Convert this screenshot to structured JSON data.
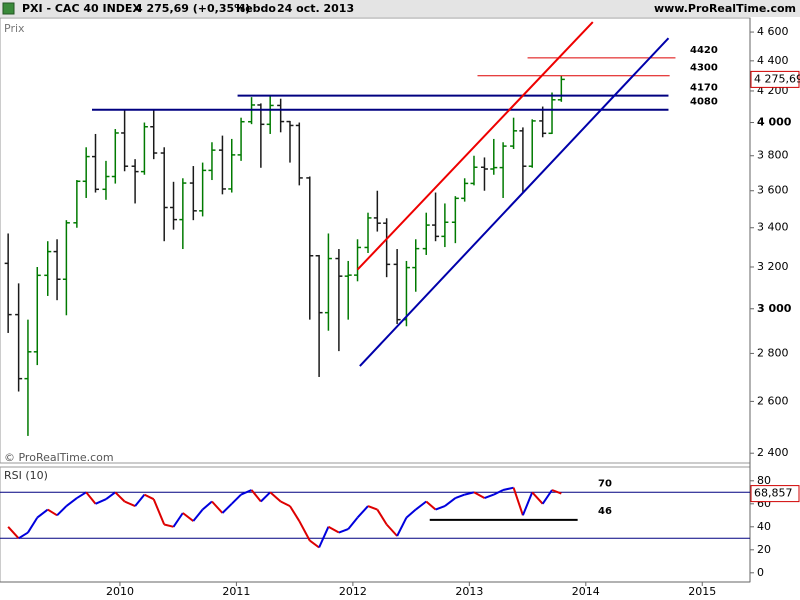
{
  "header": {
    "symbol": "PXI - CAC 40 INDEX",
    "quote": "4 275,69 (+0,35%)",
    "period": "Hebdo",
    "date": "24 oct. 2013",
    "site": "www.ProRealTime.com"
  },
  "chart_data": [
    {
      "type": "ohlc",
      "label": "Prix",
      "watermark": "© ProRealTime.com",
      "log_scale": true,
      "up_color": "#007a00",
      "down_color": "#1a1a1a",
      "x": [
        2009.04,
        2009.13,
        2009.21,
        2009.29,
        2009.38,
        2009.46,
        2009.54,
        2009.63,
        2009.71,
        2009.79,
        2009.88,
        2009.96,
        2010.04,
        2010.13,
        2010.21,
        2010.29,
        2010.38,
        2010.46,
        2010.54,
        2010.63,
        2010.71,
        2010.79,
        2010.88,
        2010.96,
        2011.04,
        2011.13,
        2011.21,
        2011.29,
        2011.38,
        2011.46,
        2011.54,
        2011.63,
        2011.71,
        2011.79,
        2011.88,
        2011.96,
        2012.04,
        2012.13,
        2012.21,
        2012.29,
        2012.38,
        2012.46,
        2012.54,
        2012.63,
        2012.71,
        2012.79,
        2012.88,
        2012.96,
        2013.04,
        2013.13,
        2013.21,
        2013.29,
        2013.38,
        2013.46,
        2013.54,
        2013.63,
        2013.71,
        2013.79
      ],
      "open": [
        3218,
        2973,
        2693,
        2807,
        3159,
        3277,
        3140,
        3426,
        3653,
        3795,
        3608,
        3680,
        3936,
        3739,
        3708,
        3974,
        3816,
        3508,
        3443,
        3643,
        3490,
        3715,
        3833,
        3610,
        3805,
        4005,
        4110,
        3989,
        4107,
        4006,
        3982,
        3672,
        3256,
        2982,
        3242,
        3155,
        3160,
        3298,
        3452,
        3424,
        3213,
        2950,
        3197,
        3292,
        3414,
        3355,
        3429,
        3558,
        3641,
        3733,
        3723,
        3731,
        3857,
        3949,
        3739,
        4010,
        3934,
        4143
      ],
      "high": [
        3370,
        3120,
        2950,
        3200,
        3330,
        3340,
        3440,
        3660,
        3850,
        3930,
        3770,
        3960,
        4080,
        3780,
        4000,
        4080,
        3850,
        3650,
        3670,
        3740,
        3760,
        3880,
        3920,
        3900,
        4030,
        4160,
        4120,
        4170,
        4150,
        4010,
        4000,
        3680,
        3260,
        3370,
        3290,
        3230,
        3340,
        3480,
        3600,
        3450,
        3290,
        3230,
        3340,
        3480,
        3590,
        3530,
        3570,
        3670,
        3800,
        3790,
        3900,
        3880,
        4030,
        3970,
        4020,
        4100,
        4190,
        4300
      ],
      "low": [
        2890,
        2640,
        2465,
        2750,
        3060,
        3040,
        2970,
        3400,
        3560,
        3590,
        3550,
        3640,
        3710,
        3530,
        3690,
        3780,
        3330,
        3390,
        3290,
        3440,
        3460,
        3660,
        3580,
        3590,
        3770,
        3990,
        3730,
        3930,
        3940,
        3760,
        3630,
        2950,
        2700,
        2900,
        2810,
        2950,
        3130,
        3270,
        3380,
        3150,
        2930,
        2920,
        3080,
        3260,
        3330,
        3300,
        3320,
        3540,
        3630,
        3600,
        3690,
        3560,
        3840,
        3590,
        3730,
        3910,
        3930,
        4130
      ],
      "close": [
        2973,
        2693,
        2807,
        3159,
        3277,
        3140,
        3426,
        3653,
        3795,
        3608,
        3680,
        3936,
        3739,
        3708,
        3974,
        3816,
        3508,
        3443,
        3643,
        3490,
        3715,
        3833,
        3610,
        3805,
        4005,
        4110,
        3989,
        4107,
        4006,
        3982,
        3672,
        3256,
        2982,
        3242,
        3155,
        3160,
        3298,
        3452,
        3424,
        3213,
        2950,
        3197,
        3292,
        3414,
        3355,
        3429,
        3558,
        3641,
        3733,
        3723,
        3731,
        3857,
        3949,
        3739,
        4010,
        3934,
        4143,
        4275.69
      ],
      "xlim": [
        2008.97,
        2015.41
      ],
      "xticks": [
        2010,
        2011,
        2012,
        2013,
        2014,
        2015
      ],
      "ylim": [
        2364,
        4701
      ],
      "yticks": [
        {
          "value": 4600,
          "label": "4 600"
        },
        {
          "value": 4400,
          "label": "4 400"
        },
        {
          "value": 4200,
          "label": "4 200"
        },
        {
          "value": 4000,
          "label": "4 000"
        },
        {
          "value": 3800,
          "label": "3 800"
        },
        {
          "value": 3600,
          "label": "3 600"
        },
        {
          "value": 3400,
          "label": "3 400"
        },
        {
          "value": 3200,
          "label": "3 200"
        },
        {
          "value": 3000,
          "label": "3 000"
        },
        {
          "value": 2800,
          "label": "2 800"
        },
        {
          "value": 2600,
          "label": "2 600"
        },
        {
          "value": 2400,
          "label": "2 400"
        }
      ],
      "last_value": {
        "value": 4275.69,
        "label": "4 275,69"
      },
      "levels": [
        {
          "value": 4420,
          "color": "#dd0000",
          "x": [
            2013.5,
            2014.77
          ]
        },
        {
          "value": 4300,
          "color": "#dd0000",
          "x": [
            2013.07,
            2014.72
          ]
        },
        {
          "value": 4170,
          "color": "#000080",
          "x": [
            2011.01,
            2014.71
          ]
        },
        {
          "value": 4080,
          "color": "#000080",
          "x": [
            2009.76,
            2014.71
          ]
        }
      ],
      "trendlines": [
        {
          "color": "#ee0000",
          "x": [
            2012.04,
            2014.06
          ],
          "y": [
            3187,
            4672
          ]
        },
        {
          "color": "#0000aa",
          "x": [
            2012.06,
            2014.71
          ],
          "y": [
            2746,
            4557
          ]
        }
      ]
    },
    {
      "type": "line",
      "title": "RSI (10)",
      "up_color": "#0000dd",
      "down_color": "#dd0000",
      "x": [
        2009.04,
        2009.13,
        2009.21,
        2009.29,
        2009.38,
        2009.46,
        2009.54,
        2009.63,
        2009.71,
        2009.79,
        2009.88,
        2009.96,
        2010.04,
        2010.13,
        2010.21,
        2010.29,
        2010.38,
        2010.46,
        2010.54,
        2010.63,
        2010.71,
        2010.79,
        2010.88,
        2010.96,
        2011.04,
        2011.13,
        2011.21,
        2011.29,
        2011.38,
        2011.46,
        2011.54,
        2011.63,
        2011.71,
        2011.79,
        2011.88,
        2011.96,
        2012.04,
        2012.13,
        2012.21,
        2012.29,
        2012.38,
        2012.46,
        2012.54,
        2012.63,
        2012.71,
        2012.79,
        2012.88,
        2012.96,
        2013.04,
        2013.13,
        2013.21,
        2013.29,
        2013.38,
        2013.46,
        2013.54,
        2013.63,
        2013.71,
        2013.79
      ],
      "values": [
        40,
        30,
        35,
        48,
        55,
        50,
        58,
        65,
        70,
        60,
        64,
        70,
        62,
        58,
        68,
        64,
        42,
        40,
        52,
        45,
        55,
        62,
        52,
        60,
        68,
        72,
        62,
        70,
        62,
        58,
        45,
        28,
        22,
        40,
        35,
        38,
        48,
        58,
        55,
        42,
        32,
        48,
        55,
        62,
        55,
        58,
        65,
        68,
        70,
        65,
        68,
        72,
        74,
        50,
        70,
        60,
        72,
        68.857
      ],
      "ylim": [
        -8,
        92
      ],
      "yticks": [
        0,
        20,
        40,
        60,
        80
      ],
      "last_value": {
        "value": 68.857,
        "label": "68,857"
      },
      "levels": [
        {
          "value": 70,
          "labeled": true,
          "color": "#000080"
        },
        {
          "value": 30,
          "labeled": false,
          "color": "#000080"
        },
        {
          "value": 46,
          "labeled": true,
          "color": "#000000",
          "x": [
            2012.66,
            2013.93
          ]
        }
      ]
    }
  ]
}
